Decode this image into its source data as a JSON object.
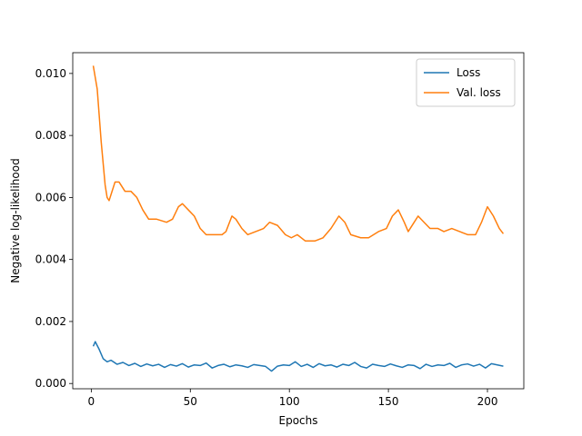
{
  "chart_data": {
    "type": "line",
    "xlabel": "Epochs",
    "ylabel": "Negative log-likelihood",
    "xlim": [
      -9.35,
      218.35
    ],
    "xticks": [
      0,
      50,
      100,
      150,
      200
    ],
    "ylim": [
      -0.00017,
      0.01067
    ],
    "yticks": [
      {
        "value": 0,
        "label": "0.000"
      },
      {
        "value": 0.002,
        "label": "0.002"
      },
      {
        "value": 0.004,
        "label": "0.004"
      },
      {
        "value": 0.006,
        "label": "0.006"
      },
      {
        "value": 0.008,
        "label": "0.008"
      },
      {
        "value": 0.01,
        "label": "0.010"
      }
    ],
    "legend": "upper right",
    "grid": false,
    "series": [
      {
        "name": "Loss",
        "color": "#1f77b4",
        "x": [
          1,
          2,
          4,
          6,
          8,
          10,
          13,
          16,
          19,
          22,
          25,
          28,
          31,
          34,
          37,
          40,
          43,
          46,
          49,
          52,
          55,
          58,
          61,
          64,
          67,
          70,
          73,
          76,
          79,
          82,
          85,
          88,
          91,
          94,
          97,
          100,
          103,
          106,
          109,
          112,
          115,
          118,
          121,
          124,
          127,
          130,
          133,
          136,
          139,
          142,
          145,
          148,
          151,
          154,
          157,
          160,
          163,
          166,
          169,
          172,
          175,
          178,
          181,
          184,
          187,
          190,
          193,
          196,
          199,
          202,
          205,
          208
        ],
        "values": [
          0.0012,
          0.00135,
          0.0011,
          0.0008,
          0.0007,
          0.00075,
          0.00062,
          0.00068,
          0.00058,
          0.00065,
          0.00055,
          0.00063,
          0.00057,
          0.00062,
          0.00052,
          0.00061,
          0.00056,
          0.00064,
          0.00053,
          0.0006,
          0.00058,
          0.00066,
          0.0005,
          0.00058,
          0.00062,
          0.00054,
          0.0006,
          0.00057,
          0.00052,
          0.00061,
          0.00058,
          0.00055,
          0.0004,
          0.00056,
          0.0006,
          0.00058,
          0.0007,
          0.00055,
          0.00062,
          0.00052,
          0.00064,
          0.00057,
          0.0006,
          0.00053,
          0.00062,
          0.00058,
          0.00068,
          0.00055,
          0.0005,
          0.00062,
          0.00058,
          0.00055,
          0.00063,
          0.00057,
          0.00052,
          0.0006,
          0.00058,
          0.00048,
          0.00062,
          0.00055,
          0.0006,
          0.00058,
          0.00065,
          0.00052,
          0.0006,
          0.00063,
          0.00056,
          0.00062,
          0.0005,
          0.00064,
          0.0006,
          0.00056
        ]
      },
      {
        "name": "Val. loss",
        "color": "#ff7f0e",
        "x": [
          1,
          3,
          5,
          7,
          8,
          9,
          10,
          12,
          14,
          17,
          20,
          23,
          26,
          29,
          33,
          38,
          41,
          44,
          46,
          49,
          52,
          55,
          58,
          62,
          66,
          68,
          71,
          73,
          76,
          79,
          83,
          87,
          90,
          94,
          98,
          101,
          104,
          108,
          113,
          117,
          121,
          125,
          128,
          131,
          136,
          140,
          145,
          149,
          152,
          155,
          158,
          160,
          163,
          165,
          168,
          171,
          175,
          178,
          182,
          186,
          190,
          194,
          197,
          200,
          203,
          206,
          208
        ],
        "values": [
          0.01025,
          0.0095,
          0.0078,
          0.0064,
          0.006,
          0.0059,
          0.0061,
          0.0065,
          0.0065,
          0.0062,
          0.0062,
          0.006,
          0.0056,
          0.0053,
          0.0053,
          0.0052,
          0.0053,
          0.0057,
          0.0058,
          0.0056,
          0.0054,
          0.005,
          0.0048,
          0.0048,
          0.0048,
          0.0049,
          0.0054,
          0.0053,
          0.005,
          0.0048,
          0.0049,
          0.005,
          0.0052,
          0.0051,
          0.0048,
          0.0047,
          0.0048,
          0.0046,
          0.0046,
          0.0047,
          0.005,
          0.0054,
          0.0052,
          0.0048,
          0.0047,
          0.0047,
          0.0049,
          0.005,
          0.0054,
          0.0056,
          0.0052,
          0.0049,
          0.0052,
          0.0054,
          0.0052,
          0.005,
          0.005,
          0.0049,
          0.005,
          0.0049,
          0.0048,
          0.0048,
          0.0052,
          0.0057,
          0.0054,
          0.005,
          0.00483
        ]
      }
    ]
  }
}
